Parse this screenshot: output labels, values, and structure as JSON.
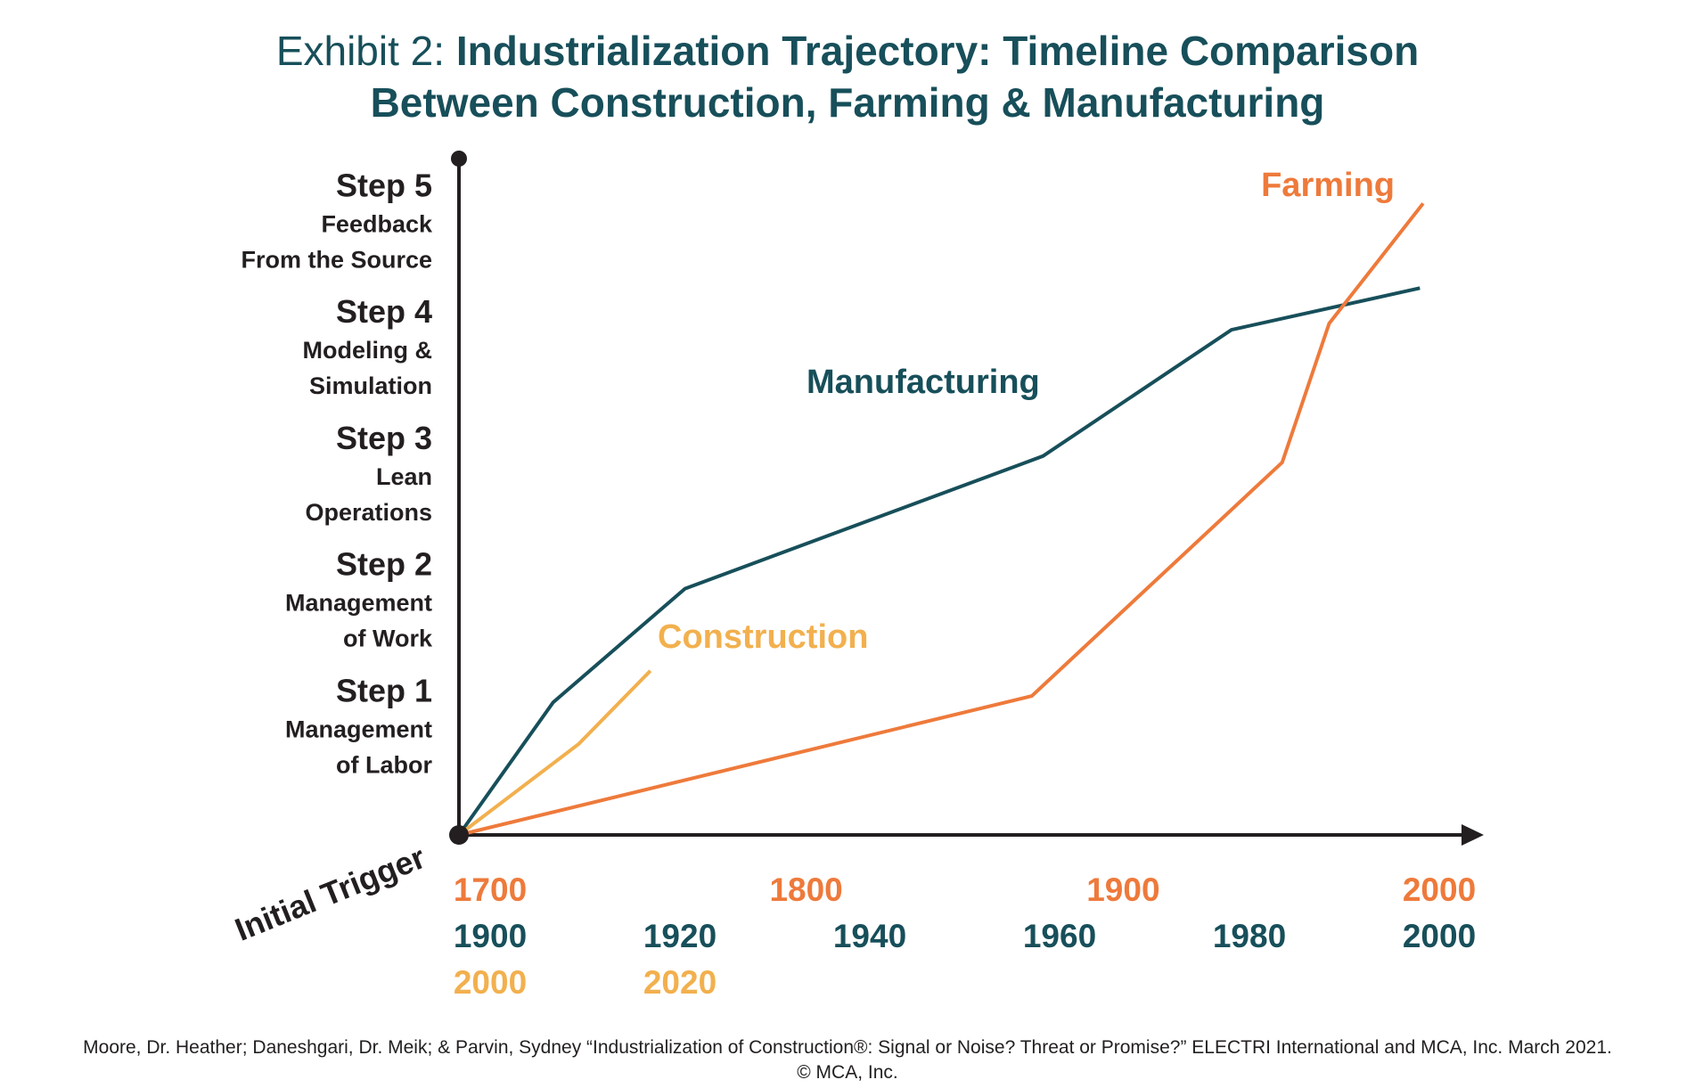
{
  "title": {
    "lead": "Exhibit 2:",
    "main_line1": "Industrialization Trajectory: Timeline Comparison",
    "main_line2": "Between Construction, Farming & Manufacturing"
  },
  "chart_data": {
    "type": "line",
    "y_axis": {
      "origin_label": "Initial Trigger",
      "ylim": [
        0,
        5.2
      ],
      "steps": [
        {
          "value": 1,
          "title": "Step 1",
          "lines": [
            "Management",
            "of Labor"
          ]
        },
        {
          "value": 2,
          "title": "Step 2",
          "lines": [
            "Management",
            "of Work"
          ]
        },
        {
          "value": 3,
          "title": "Step 3",
          "lines": [
            "Lean",
            "Operations"
          ]
        },
        {
          "value": 4,
          "title": "Step 4",
          "lines": [
            "Modeling &",
            "Simulation"
          ]
        },
        {
          "value": 5,
          "title": "Step 5",
          "lines": [
            "Feedback",
            "From the Source"
          ]
        }
      ]
    },
    "x_axis": {
      "xlim": [
        0,
        1
      ],
      "tick_rows": [
        {
          "series": "Farming",
          "color": "#ee7a3b",
          "ticks": [
            {
              "pos": 0.0,
              "label": "1700"
            },
            {
              "pos": 0.333,
              "label": "1800"
            },
            {
              "pos": 0.667,
              "label": "1900"
            },
            {
              "pos": 1.0,
              "label": "2000"
            }
          ]
        },
        {
          "series": "Manufacturing",
          "color": "#174f5a",
          "ticks": [
            {
              "pos": 0.0,
              "label": "1900"
            },
            {
              "pos": 0.2,
              "label": "1920"
            },
            {
              "pos": 0.4,
              "label": "1940"
            },
            {
              "pos": 0.6,
              "label": "1960"
            },
            {
              "pos": 0.8,
              "label": "1980"
            },
            {
              "pos": 1.0,
              "label": "2000"
            }
          ]
        },
        {
          "series": "Construction",
          "color": "#f2b04e",
          "ticks": [
            {
              "pos": 0.0,
              "label": "2000"
            },
            {
              "pos": 0.2,
              "label": "2020"
            }
          ]
        }
      ]
    },
    "series": [
      {
        "name": "Manufacturing",
        "color": "#174f5a",
        "x": [
          1900,
          1910,
          1924,
          1962,
          1982,
          2002
        ],
        "y": [
          0,
          1.05,
          1.95,
          3.0,
          4.0,
          4.33
        ]
      },
      {
        "name": "Farming",
        "color": "#ee7a3b",
        "x": [
          1700,
          1883,
          1963,
          1978,
          2008
        ],
        "y": [
          0,
          1.1,
          2.95,
          4.05,
          5.0
        ]
      },
      {
        "name": "Construction",
        "color": "#f2b04e",
        "x": [
          2000,
          2015,
          2024
        ],
        "y": [
          0,
          0.72,
          1.3
        ]
      }
    ]
  },
  "citation": {
    "line1": "Moore, Dr. Heather; Daneshgari, Dr. Meik; & Parvin, Sydney “Industrialization of Construction®: Signal or Noise? Threat or Promise?” ELECTRI International and MCA, Inc. March 2021.",
    "line2": "© MCA, Inc."
  }
}
